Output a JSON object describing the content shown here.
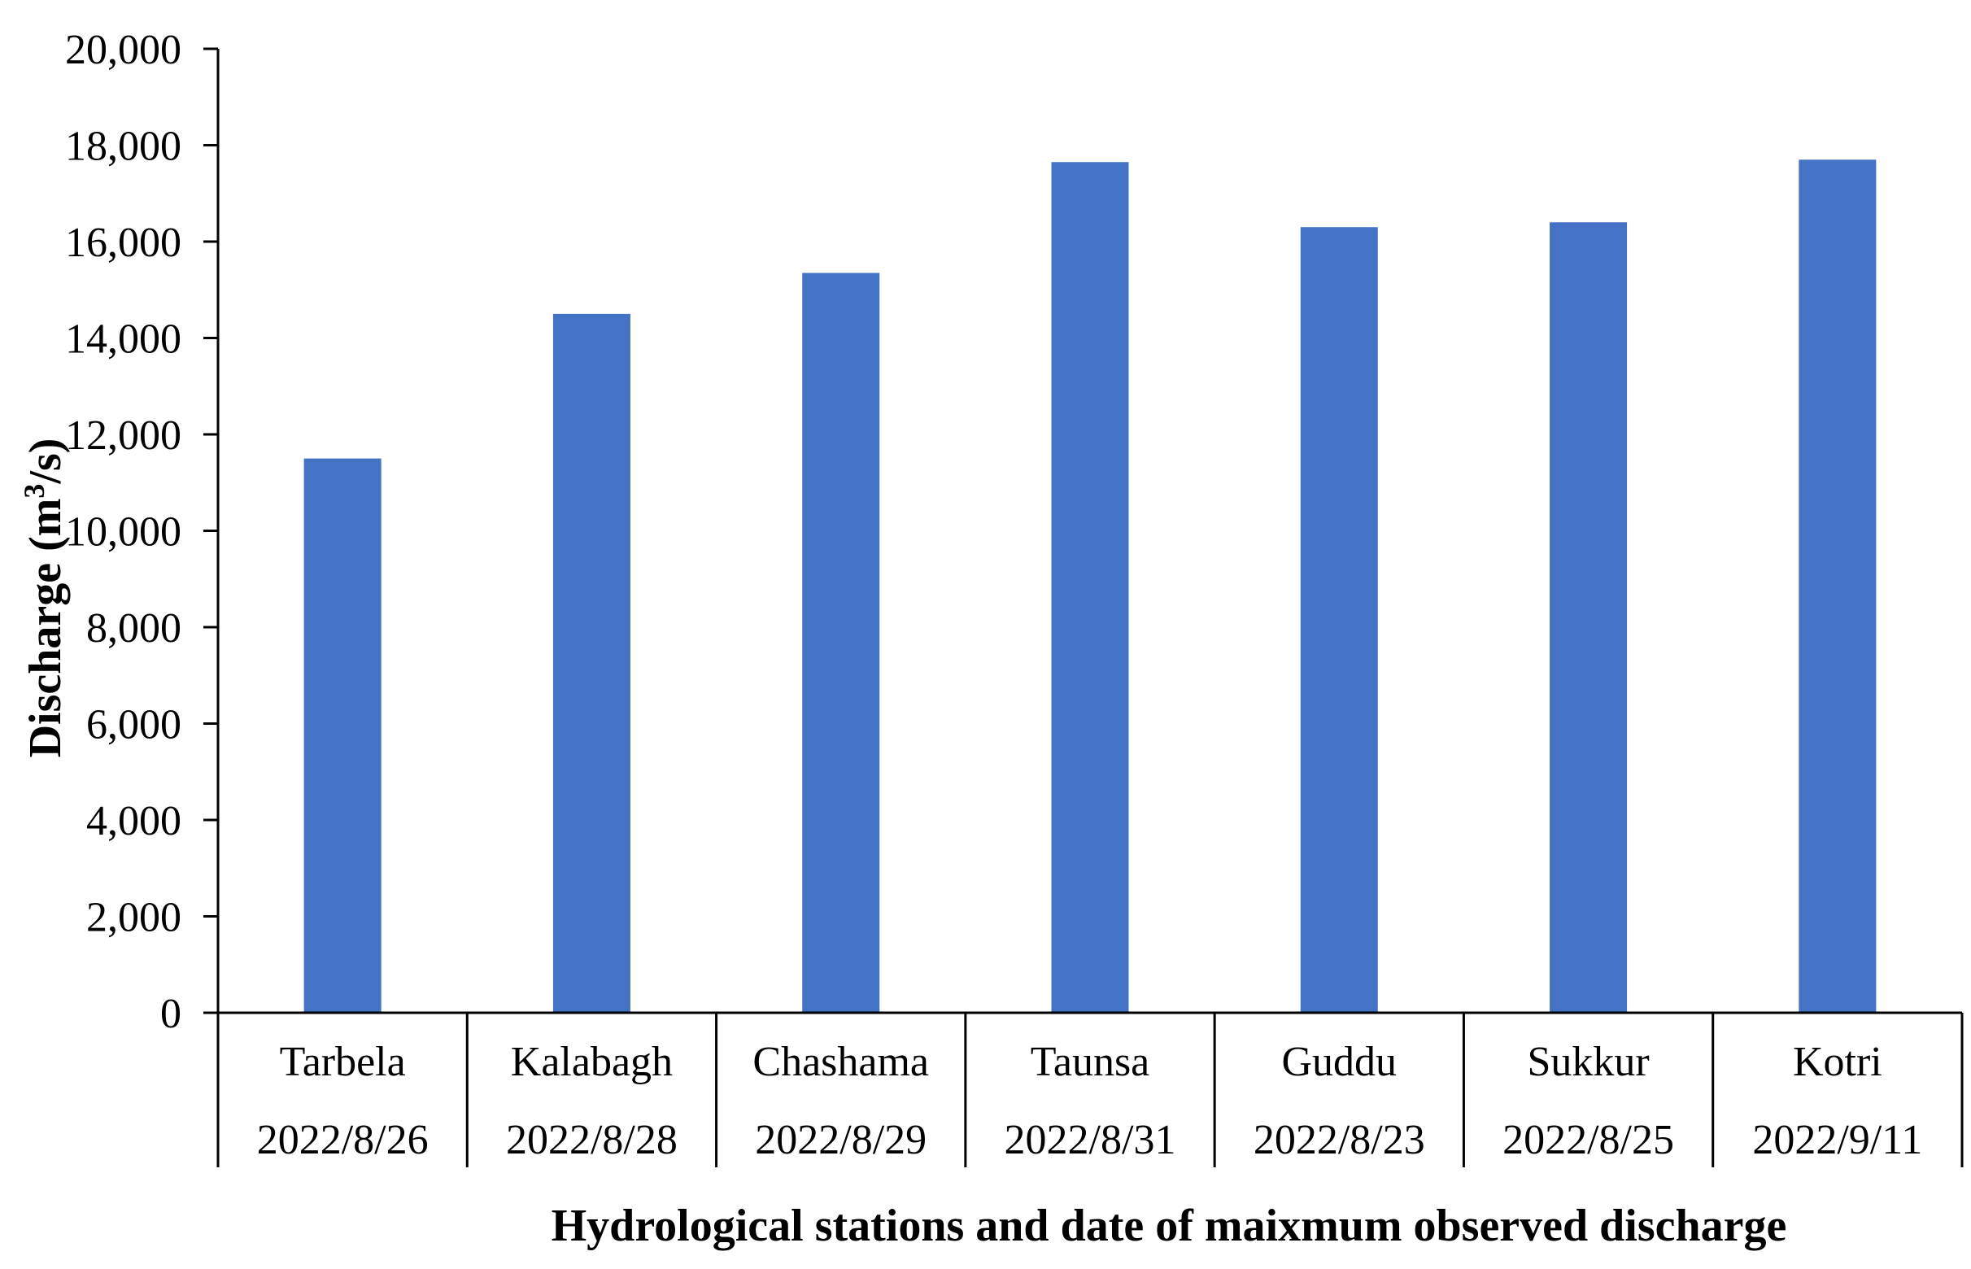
{
  "chart_data": {
    "type": "bar",
    "title": "",
    "xlabel": "Hydrological stations and date of maixmum observed discharge",
    "ylabel": {
      "main": "Discharge (m",
      "sup": "3",
      "end": "/s)"
    },
    "categories": [
      "Tarbela",
      "Kalabagh",
      "Chashama",
      "Taunsa",
      "Guddu",
      "Sukkur",
      "Kotri"
    ],
    "dates": [
      "2022/8/26",
      "2022/8/28",
      "2022/8/29",
      "2022/8/31",
      "2022/8/23",
      "2022/8/25",
      "2022/9/11"
    ],
    "values": [
      11500,
      14500,
      15350,
      17650,
      16300,
      16400,
      17700
    ],
    "ylim": [
      0,
      20000
    ],
    "yticks": [
      0,
      2000,
      4000,
      6000,
      8000,
      10000,
      12000,
      14000,
      16000,
      18000,
      20000
    ],
    "ytick_labels": [
      "0",
      "2,000",
      "4,000",
      "6,000",
      "8,000",
      "10,000",
      "12,000",
      "14,000",
      "16,000",
      "18,000",
      "20,000"
    ],
    "grid": false,
    "legend": "none",
    "bar_color": "#4472C4"
  }
}
